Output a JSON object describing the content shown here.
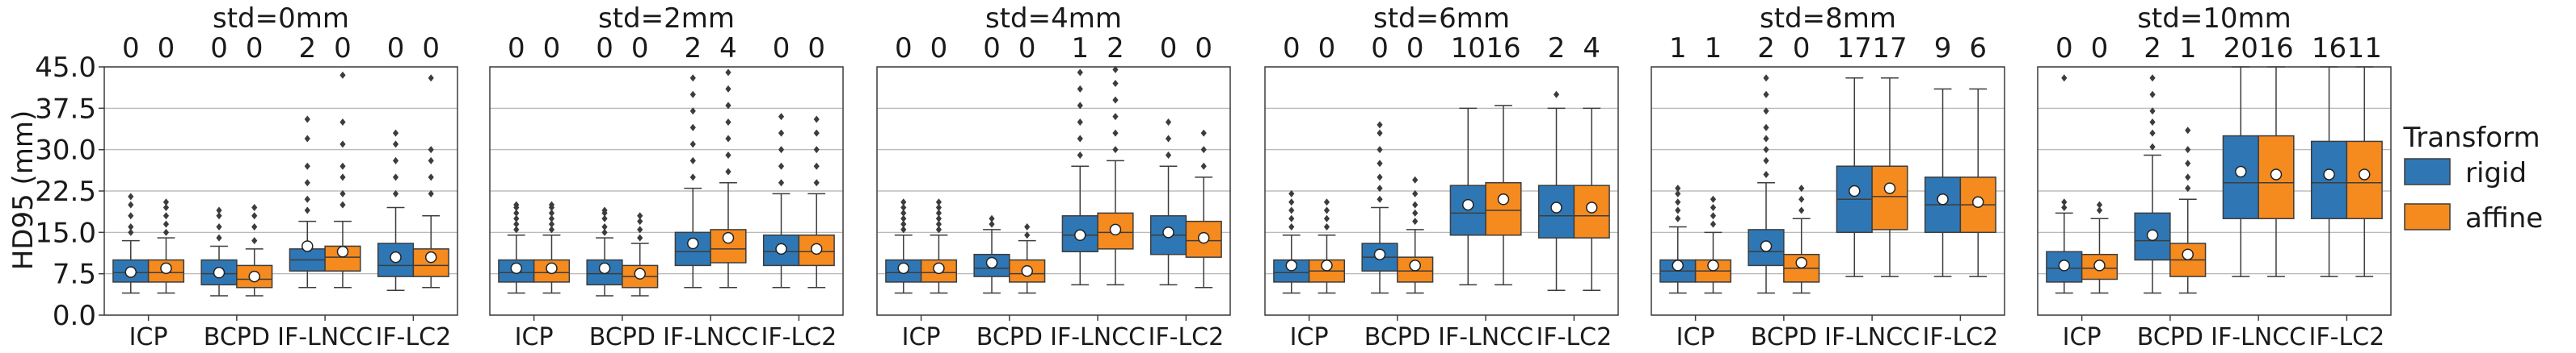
{
  "chart_data": {
    "type": "boxplot",
    "ylabel": "HD95 (mm)",
    "ylim": [
      0,
      45
    ],
    "yticks": [
      "0.0",
      "7.5",
      "15.0",
      "22.5",
      "30.0",
      "37.5",
      "45.0"
    ],
    "ytick_values": [
      0,
      7.5,
      15,
      22.5,
      30,
      37.5,
      45
    ],
    "categories": [
      "ICP",
      "BCPD",
      "IF-LNCC",
      "IF-LC2"
    ],
    "legend": {
      "title": "Transform",
      "entries": [
        {
          "name": "rigid",
          "color": "#2f77b4"
        },
        {
          "name": "affine",
          "color": "#f58a1f"
        }
      ]
    },
    "panels": [
      {
        "title": "std=0mm",
        "counts": [
          "0",
          "0",
          "0",
          "0",
          "2",
          "0",
          "0",
          "0"
        ],
        "boxes": [
          {
            "q1": 6,
            "median": 7.7,
            "q3": 10,
            "wlo": 4,
            "whi": 13.5,
            "mean": 7.8,
            "outliers": [
              15,
              16,
              18,
              20,
              21.5
            ]
          },
          {
            "q1": 6,
            "median": 7.7,
            "q3": 10,
            "wlo": 4,
            "whi": 14,
            "mean": 8.5,
            "outliers": [
              15,
              16.5,
              18,
              19.5,
              20.5
            ]
          },
          {
            "q1": 5.5,
            "median": 7.5,
            "q3": 10,
            "wlo": 3.5,
            "whi": 12.5,
            "mean": 7.7,
            "outliers": [
              14,
              16,
              18,
              19
            ]
          },
          {
            "q1": 5,
            "median": 6.5,
            "q3": 9,
            "wlo": 3.5,
            "whi": 12,
            "mean": 7,
            "outliers": [
              13.5,
              16,
              18,
              19.5
            ]
          },
          {
            "q1": 8,
            "median": 10,
            "q3": 12,
            "wlo": 5,
            "whi": 17,
            "mean": 12.5,
            "outliers": [
              19,
              21,
              24,
              27,
              32,
              35.5
            ]
          },
          {
            "q1": 8,
            "median": 10.5,
            "q3": 12.5,
            "wlo": 5,
            "whi": 17,
            "mean": 11.5,
            "outliers": [
              20,
              22,
              25,
              27,
              31,
              35,
              43.5
            ]
          },
          {
            "q1": 7,
            "median": 9,
            "q3": 13,
            "wlo": 4.5,
            "whi": 19.5,
            "mean": 10.5,
            "outliers": [
              22,
              25,
              28,
              31,
              33
            ]
          },
          {
            "q1": 7,
            "median": 9,
            "q3": 12,
            "wlo": 5,
            "whi": 18,
            "mean": 10.5,
            "outliers": [
              22,
              25,
              28,
              30,
              43
            ]
          }
        ]
      },
      {
        "title": "std=2mm",
        "counts": [
          "0",
          "0",
          "0",
          "0",
          "2",
          "4",
          "0",
          "0"
        ],
        "boxes": [
          {
            "q1": 6,
            "median": 7.7,
            "q3": 10,
            "wlo": 4,
            "whi": 14.5,
            "mean": 8.5,
            "outliers": [
              15.5,
              16.5,
              17.5,
              18.5,
              19.5,
              20
            ]
          },
          {
            "q1": 6,
            "median": 7.7,
            "q3": 10,
            "wlo": 4,
            "whi": 14.5,
            "mean": 8.5,
            "outliers": [
              15.5,
              16.5,
              17.5,
              18.5,
              19.5,
              20
            ]
          },
          {
            "q1": 5.5,
            "median": 7.5,
            "q3": 10,
            "wlo": 3.5,
            "whi": 14,
            "mean": 8.5,
            "outliers": [
              15,
              16,
              17.5,
              18.5,
              19
            ]
          },
          {
            "q1": 5,
            "median": 7,
            "q3": 9,
            "wlo": 3.5,
            "whi": 13,
            "mean": 7.5,
            "outliers": [
              14,
              15.5,
              17,
              18
            ]
          },
          {
            "q1": 9,
            "median": 11.5,
            "q3": 15,
            "wlo": 5,
            "whi": 23,
            "mean": 13,
            "outliers": [
              25,
              28,
              31,
              34,
              37,
              40,
              43
            ]
          },
          {
            "q1": 9.5,
            "median": 12,
            "q3": 15.5,
            "wlo": 5,
            "whi": 24,
            "mean": 14,
            "outliers": [
              26,
              29,
              32,
              35,
              38,
              41,
              44
            ]
          },
          {
            "q1": 9,
            "median": 11.5,
            "q3": 14.5,
            "wlo": 5,
            "whi": 22,
            "mean": 12,
            "outliers": [
              24,
              27,
              30,
              33,
              36
            ]
          },
          {
            "q1": 9,
            "median": 11.5,
            "q3": 14.5,
            "wlo": 5,
            "whi": 22,
            "mean": 12,
            "outliers": [
              24,
              27,
              30,
              33,
              35.5
            ]
          }
        ]
      },
      {
        "title": "std=4mm",
        "counts": [
          "0",
          "0",
          "0",
          "0",
          "1",
          "2",
          "0",
          "0"
        ],
        "boxes": [
          {
            "q1": 6,
            "median": 7.7,
            "q3": 10,
            "wlo": 4,
            "whi": 14.5,
            "mean": 8.5,
            "outliers": [
              15.5,
              16.5,
              17.5,
              18.5,
              19.5,
              20.5
            ]
          },
          {
            "q1": 6,
            "median": 7.7,
            "q3": 10,
            "wlo": 4,
            "whi": 14.5,
            "mean": 8.5,
            "outliers": [
              15.5,
              16.5,
              17.5,
              18.5,
              19.5,
              20.5
            ]
          },
          {
            "q1": 7,
            "median": 8.5,
            "q3": 11,
            "wlo": 4,
            "whi": 15.5,
            "mean": 9.5,
            "outliers": [
              16.5,
              17.5
            ]
          },
          {
            "q1": 6,
            "median": 7.5,
            "q3": 10,
            "wlo": 4,
            "whi": 13.5,
            "mean": 8,
            "outliers": [
              14.5,
              16
            ]
          },
          {
            "q1": 11.5,
            "median": 14.5,
            "q3": 18,
            "wlo": 5.5,
            "whi": 27,
            "mean": 14.5,
            "outliers": [
              29,
              32,
              35,
              38,
              41,
              44
            ]
          },
          {
            "q1": 12,
            "median": 15,
            "q3": 18.5,
            "wlo": 5.5,
            "whi": 28,
            "mean": 15.5,
            "outliers": [
              30,
              33,
              36,
              39,
              42,
              44.5
            ]
          },
          {
            "q1": 11,
            "median": 14.5,
            "q3": 18,
            "wlo": 5.5,
            "whi": 27,
            "mean": 15,
            "outliers": [
              29,
              32,
              35
            ]
          },
          {
            "q1": 10.5,
            "median": 13.5,
            "q3": 17,
            "wlo": 5,
            "whi": 25,
            "mean": 14,
            "outliers": [
              27,
              30,
              33
            ]
          }
        ]
      },
      {
        "title": "std=6mm",
        "counts": [
          "0",
          "0",
          "0",
          "0",
          "10",
          "16",
          "2",
          "4"
        ],
        "boxes": [
          {
            "q1": 6,
            "median": 7.7,
            "q3": 10,
            "wlo": 4,
            "whi": 14.5,
            "mean": 9,
            "outliers": [
              16,
              17.5,
              19,
              20.5,
              22
            ]
          },
          {
            "q1": 6,
            "median": 8,
            "q3": 10,
            "wlo": 4,
            "whi": 14.5,
            "mean": 9,
            "outliers": [
              16,
              17.5,
              19,
              20.5
            ]
          },
          {
            "q1": 8,
            "median": 10.5,
            "q3": 13,
            "wlo": 4,
            "whi": 19.5,
            "mean": 11,
            "outliers": [
              21,
              23,
              25,
              27.5,
              30,
              33,
              34.5
            ]
          },
          {
            "q1": 6,
            "median": 8,
            "q3": 10.5,
            "wlo": 4,
            "whi": 15.5,
            "mean": 9,
            "outliers": [
              17,
              18.5,
              20,
              22,
              24.5
            ]
          },
          {
            "q1": 14.5,
            "median": 18.5,
            "q3": 23.5,
            "wlo": 5.5,
            "whi": 37.5,
            "mean": 20,
            "outliers": []
          },
          {
            "q1": 14.5,
            "median": 19,
            "q3": 24,
            "wlo": 5.5,
            "whi": 38,
            "mean": 21,
            "outliers": []
          },
          {
            "q1": 14,
            "median": 18,
            "q3": 23.5,
            "wlo": 4.5,
            "whi": 37.5,
            "mean": 19.5,
            "outliers": [
              40
            ]
          },
          {
            "q1": 14,
            "median": 18,
            "q3": 23.5,
            "wlo": 4.5,
            "whi": 37.5,
            "mean": 19.5,
            "outliers": []
          }
        ]
      },
      {
        "title": "std=8mm",
        "counts": [
          "1",
          "1",
          "2",
          "0",
          "17",
          "17",
          "9",
          "6"
        ],
        "boxes": [
          {
            "q1": 6,
            "median": 8,
            "q3": 10,
            "wlo": 4,
            "whi": 16,
            "mean": 9,
            "outliers": [
              17.5,
              19,
              20.5,
              22,
              23
            ]
          },
          {
            "q1": 6,
            "median": 8,
            "q3": 10,
            "wlo": 4,
            "whi": 15,
            "mean": 9,
            "outliers": [
              16.5,
              18,
              19.5,
              21
            ]
          },
          {
            "q1": 9,
            "median": 11.5,
            "q3": 15.5,
            "wlo": 4,
            "whi": 24,
            "mean": 12.5,
            "outliers": [
              25.5,
              28,
              30,
              32,
              34,
              37,
              40,
              43
            ]
          },
          {
            "q1": 6,
            "median": 8.5,
            "q3": 11,
            "wlo": 4,
            "whi": 17.5,
            "mean": 9.5,
            "outliers": [
              19,
              21,
              23
            ]
          },
          {
            "q1": 15,
            "median": 21,
            "q3": 27,
            "wlo": 7,
            "whi": 43,
            "mean": 22.5,
            "outliers": []
          },
          {
            "q1": 15.5,
            "median": 21.5,
            "q3": 27,
            "wlo": 7,
            "whi": 43,
            "mean": 23,
            "outliers": []
          },
          {
            "q1": 15,
            "median": 20,
            "q3": 25,
            "wlo": 7,
            "whi": 41,
            "mean": 21,
            "outliers": []
          },
          {
            "q1": 15,
            "median": 20,
            "q3": 25,
            "wlo": 7,
            "whi": 41,
            "mean": 20.5,
            "outliers": []
          }
        ]
      },
      {
        "title": "std=10mm",
        "counts": [
          "0",
          "0",
          "2",
          "1",
          "20",
          "16",
          "16",
          "11"
        ],
        "boxes": [
          {
            "q1": 6,
            "median": 8.5,
            "q3": 11.5,
            "wlo": 4,
            "whi": 18.5,
            "mean": 9,
            "outliers": [
              19.5,
              20.5,
              43
            ]
          },
          {
            "q1": 6.5,
            "median": 8.5,
            "q3": 11,
            "wlo": 4,
            "whi": 17.5,
            "mean": 9,
            "outliers": [
              19,
              20
            ]
          },
          {
            "q1": 10,
            "median": 13.5,
            "q3": 18.5,
            "wlo": 4,
            "whi": 29,
            "mean": 14.5,
            "outliers": [
              30.5,
              33,
              35,
              37,
              40,
              43
            ]
          },
          {
            "q1": 7,
            "median": 10,
            "q3": 13,
            "wlo": 4,
            "whi": 21,
            "mean": 11,
            "outliers": [
              23,
              25,
              27.5,
              30,
              33.5
            ]
          },
          {
            "q1": 17.5,
            "median": 24,
            "q3": 32.5,
            "wlo": 7,
            "whi": 45,
            "mean": 26,
            "outliers": []
          },
          {
            "q1": 17.5,
            "median": 24,
            "q3": 32.5,
            "wlo": 7,
            "whi": 45,
            "mean": 25.5,
            "outliers": []
          },
          {
            "q1": 17.5,
            "median": 24,
            "q3": 31.5,
            "wlo": 7,
            "whi": 45,
            "mean": 25.5,
            "outliers": []
          },
          {
            "q1": 17.5,
            "median": 24,
            "q3": 31.5,
            "wlo": 7,
            "whi": 45,
            "mean": 25.5,
            "outliers": []
          }
        ]
      }
    ]
  }
}
